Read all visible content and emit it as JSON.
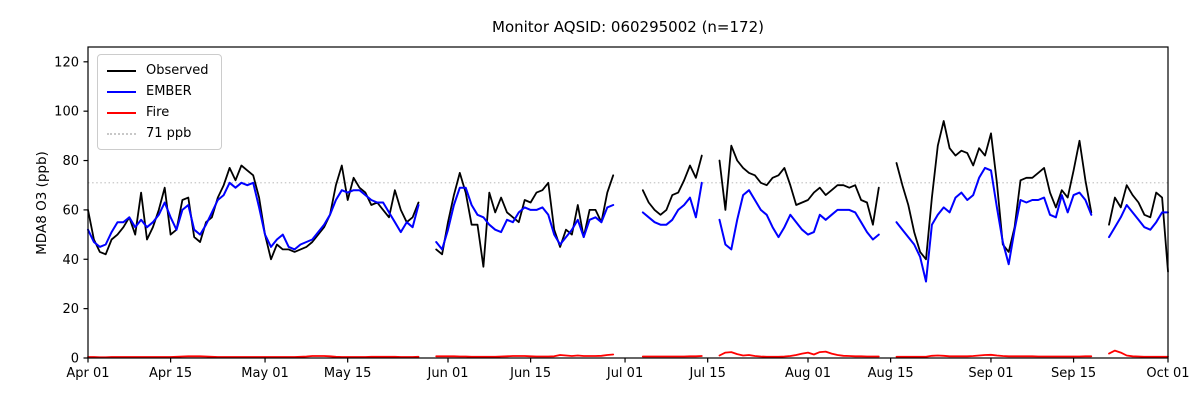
{
  "chart_data": {
    "type": "line",
    "title": "Monitor AQSID: 060295002 (n=172)",
    "ylabel": "MDA8 O3 (ppb)",
    "n_observations": 172,
    "x_start": "Apr 01",
    "x_end": "Oct 01",
    "x_range_days": 183,
    "ylim": [
      0,
      126
    ],
    "yticks": [
      0,
      20,
      40,
      60,
      80,
      100,
      120
    ],
    "xticks": [
      {
        "day": 0,
        "label": "Apr 01"
      },
      {
        "day": 14,
        "label": "Apr 15"
      },
      {
        "day": 30,
        "label": "May 01"
      },
      {
        "day": 44,
        "label": "May 15"
      },
      {
        "day": 61,
        "label": "Jun 01"
      },
      {
        "day": 75,
        "label": "Jun 15"
      },
      {
        "day": 91,
        "label": "Jul 01"
      },
      {
        "day": 105,
        "label": "Jul 15"
      },
      {
        "day": 122,
        "label": "Aug 01"
      },
      {
        "day": 136,
        "label": "Aug 15"
      },
      {
        "day": 153,
        "label": "Sep 01"
      },
      {
        "day": 167,
        "label": "Sep 15"
      },
      {
        "day": 183,
        "label": "Oct 01"
      }
    ],
    "threshold": {
      "value": 71,
      "label": "71 ppb",
      "color": "#c8c8c8",
      "style": "dotted"
    },
    "legend": [
      {
        "name": "Observed",
        "color": "#000000",
        "style": "solid"
      },
      {
        "name": "EMBER",
        "color": "#0000ff",
        "style": "solid"
      },
      {
        "name": "Fire",
        "color": "#ff0000",
        "style": "solid"
      },
      {
        "name": "71 ppb",
        "color": "#c8c8c8",
        "style": "dotted"
      }
    ],
    "missing_days": [
      "May 28",
      "May 29",
      "Jun 30",
      "Jul 01",
      "Jul 02",
      "Jul 03",
      "Jul 15",
      "Jul 16",
      "Aug 14",
      "Aug 15",
      "Sep 19",
      "Sep 20"
    ],
    "series": [
      {
        "name": "Observed",
        "color": "#000000",
        "width": 1.8,
        "values": [
          60,
          48,
          43,
          42,
          48,
          50,
          53,
          57,
          50,
          67,
          48,
          53,
          60,
          69,
          50,
          52,
          64,
          65,
          49,
          47,
          55,
          57,
          65,
          70,
          77,
          72,
          78,
          76,
          74,
          65,
          50,
          40,
          46,
          44,
          44,
          43,
          44,
          45,
          47,
          50,
          53,
          58,
          70,
          78,
          64,
          73,
          69,
          67,
          62,
          63,
          60,
          57,
          68,
          60,
          55,
          57,
          63,
          null,
          null,
          44,
          42,
          55,
          66,
          75,
          67,
          54,
          54,
          37,
          67,
          59,
          65,
          59,
          57,
          55,
          64,
          63,
          67,
          68,
          71,
          52,
          45,
          52,
          50,
          62,
          49,
          60,
          60,
          55,
          67,
          74,
          null,
          null,
          null,
          null,
          68,
          63,
          60,
          58,
          60,
          66,
          67,
          72,
          78,
          73,
          82,
          null,
          null,
          80,
          60,
          86,
          80,
          77,
          75,
          74,
          71,
          70,
          73,
          74,
          77,
          70,
          62,
          63,
          64,
          67,
          69,
          66,
          68,
          70,
          70,
          69,
          70,
          64,
          63,
          54,
          69,
          null,
          null,
          79,
          70,
          62,
          51,
          43,
          40,
          65,
          86,
          96,
          85,
          82,
          84,
          83,
          78,
          85,
          82,
          91,
          71,
          46,
          43,
          53,
          72,
          73,
          73,
          75,
          77,
          67,
          61,
          68,
          65,
          76,
          88,
          72,
          59,
          null,
          null,
          54,
          65,
          61,
          70,
          66,
          63,
          58,
          57,
          67,
          65,
          35
        ]
      },
      {
        "name": "EMBER",
        "color": "#0000ff",
        "width": 2.0,
        "values": [
          52,
          47,
          45,
          46,
          51,
          55,
          55,
          57,
          53,
          56,
          53,
          55,
          58,
          63,
          57,
          52,
          60,
          62,
          52,
          50,
          54,
          59,
          64,
          66,
          71,
          69,
          71,
          70,
          71,
          61,
          50,
          45,
          48,
          50,
          45,
          44,
          46,
          47,
          48,
          51,
          54,
          58,
          64,
          68,
          67,
          68,
          68,
          66,
          64,
          63,
          63,
          59,
          55,
          51,
          55,
          53,
          62,
          null,
          null,
          47,
          44,
          52,
          62,
          69,
          69,
          62,
          58,
          57,
          54,
          52,
          51,
          56,
          55,
          59,
          61,
          60,
          60,
          61,
          58,
          50,
          46,
          49,
          52,
          56,
          49,
          56,
          57,
          55,
          61,
          62,
          null,
          null,
          null,
          null,
          59,
          57,
          55,
          54,
          54,
          56,
          60,
          62,
          65,
          57,
          71,
          null,
          null,
          56,
          46,
          44,
          56,
          66,
          68,
          64,
          60,
          58,
          53,
          49,
          53,
          58,
          55,
          52,
          50,
          51,
          58,
          56,
          58,
          60,
          60,
          60,
          59,
          55,
          51,
          48,
          50,
          null,
          null,
          55,
          52,
          49,
          46,
          41,
          31,
          54,
          58,
          61,
          59,
          65,
          67,
          64,
          66,
          73,
          77,
          76,
          61,
          47,
          38,
          52,
          64,
          63,
          64,
          64,
          65,
          58,
          57,
          66,
          59,
          66,
          67,
          64,
          58,
          null,
          null,
          49,
          53,
          57,
          62,
          59,
          56,
          53,
          52,
          55,
          59,
          59
        ]
      },
      {
        "name": "Fire",
        "color": "#ff0000",
        "width": 1.8,
        "values": [
          0.4,
          0.4,
          0.3,
          0.3,
          0.4,
          0.4,
          0.4,
          0.4,
          0.4,
          0.4,
          0.4,
          0.4,
          0.4,
          0.4,
          0.4,
          0.5,
          0.6,
          0.7,
          0.7,
          0.7,
          0.6,
          0.5,
          0.4,
          0.4,
          0.4,
          0.4,
          0.4,
          0.4,
          0.4,
          0.4,
          0.4,
          0.4,
          0.4,
          0.4,
          0.4,
          0.4,
          0.5,
          0.6,
          0.8,
          0.8,
          0.8,
          0.7,
          0.5,
          0.4,
          0.4,
          0.4,
          0.4,
          0.4,
          0.5,
          0.5,
          0.5,
          0.5,
          0.5,
          0.4,
          0.4,
          0.4,
          0.5,
          null,
          null,
          0.7,
          0.7,
          0.7,
          0.7,
          0.6,
          0.6,
          0.5,
          0.5,
          0.5,
          0.5,
          0.5,
          0.6,
          0.7,
          0.8,
          0.8,
          0.8,
          0.7,
          0.6,
          0.6,
          0.6,
          0.7,
          1.2,
          1.0,
          0.8,
          1.0,
          0.8,
          0.8,
          0.8,
          0.9,
          1.2,
          1.4,
          null,
          null,
          null,
          null,
          0.6,
          0.6,
          0.6,
          0.6,
          0.6,
          0.6,
          0.6,
          0.6,
          0.7,
          0.7,
          0.8,
          null,
          null,
          1.0,
          2.2,
          2.4,
          1.6,
          1.0,
          1.2,
          0.8,
          0.6,
          0.5,
          0.5,
          0.5,
          0.6,
          0.8,
          1.2,
          1.8,
          2.2,
          1.4,
          2.4,
          2.6,
          1.8,
          1.2,
          0.9,
          0.8,
          0.7,
          0.7,
          0.6,
          0.6,
          0.6,
          null,
          null,
          0.5,
          0.5,
          0.5,
          0.5,
          0.5,
          0.5,
          0.9,
          1.0,
          0.9,
          0.7,
          0.7,
          0.7,
          0.7,
          0.8,
          1.0,
          1.2,
          1.3,
          1.0,
          0.8,
          0.7,
          0.7,
          0.7,
          0.7,
          0.7,
          0.6,
          0.6,
          0.6,
          0.6,
          0.6,
          0.6,
          0.6,
          0.6,
          0.7,
          0.7,
          null,
          null,
          1.8,
          3.0,
          2.2,
          1.0,
          0.7,
          0.6,
          0.5,
          0.5,
          0.5,
          0.5,
          0.5
        ]
      }
    ]
  }
}
